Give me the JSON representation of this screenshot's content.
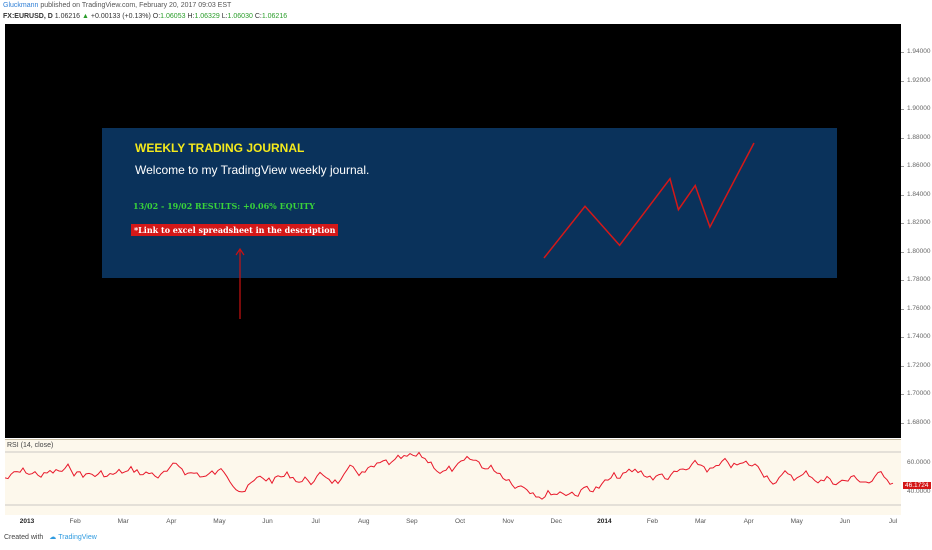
{
  "header": {
    "author": "Gluckmann",
    "published": "published on TradingView.com, February 20, 2017 09:03 EST",
    "symbol": "FX:EURUSD, D",
    "last": "1.06216",
    "arrow": "▲",
    "change": "+0.00133 (+0.13%)",
    "o_label": "O:",
    "o_value": "1.06053",
    "h_label": "H:",
    "h_value": "1.06329",
    "l_label": "L:",
    "l_value": "1.06030",
    "c_label": "C:",
    "c_value": "1.06216"
  },
  "journal": {
    "title": "WEEKLY TRADING JOURNAL",
    "welcome": "Welcome to my TradingView weekly journal.",
    "results": "13/02 - 19/02 RESULTS: +0.06% EQUITY",
    "link": "*Link to excel spreadsheet in the description",
    "equity_path": [
      [
        0,
        0
      ],
      [
        0.195,
        0.45
      ],
      [
        0.36,
        0.11
      ],
      [
        0.6,
        0.69
      ],
      [
        0.64,
        0.42
      ],
      [
        0.72,
        0.63
      ],
      [
        0.79,
        0.27
      ],
      [
        1,
        1
      ]
    ]
  },
  "price_axis": {
    "ticks": [
      "1.94000",
      "1.92000",
      "1.90000",
      "1.88000",
      "1.86000",
      "1.84000",
      "1.82000",
      "1.80000",
      "1.78000",
      "1.76000",
      "1.74000",
      "1.72000",
      "1.70000",
      "1.68000"
    ]
  },
  "rsi": {
    "label": "RSI (14, close)",
    "ticks": [
      "60.0000",
      "40.0000"
    ],
    "current": "46.1724"
  },
  "time_axis": {
    "ticks": [
      {
        "label": "2013",
        "bold": true
      },
      {
        "label": "Feb",
        "bold": false
      },
      {
        "label": "Mar",
        "bold": false
      },
      {
        "label": "Apr",
        "bold": false
      },
      {
        "label": "May",
        "bold": false
      },
      {
        "label": "Jun",
        "bold": false
      },
      {
        "label": "Jul",
        "bold": false
      },
      {
        "label": "Aug",
        "bold": false
      },
      {
        "label": "Sep",
        "bold": false
      },
      {
        "label": "Oct",
        "bold": false
      },
      {
        "label": "Nov",
        "bold": false
      },
      {
        "label": "Dec",
        "bold": false
      },
      {
        "label": "2014",
        "bold": true
      },
      {
        "label": "Feb",
        "bold": false
      },
      {
        "label": "Mar",
        "bold": false
      },
      {
        "label": "Apr",
        "bold": false
      },
      {
        "label": "May",
        "bold": false
      },
      {
        "label": "Jun",
        "bold": false
      },
      {
        "label": "Jul",
        "bold": false
      }
    ]
  },
  "footer": {
    "created": "Created with",
    "brand": "TradingView"
  },
  "colors": {
    "journal_bg": "#0a325b",
    "title": "#f5ea1c",
    "results": "#39d33a",
    "link_bg": "#d41818",
    "rsi_line": "#e8182a",
    "arrow": "#cc1111",
    "rsi_badge": "#d41818"
  }
}
